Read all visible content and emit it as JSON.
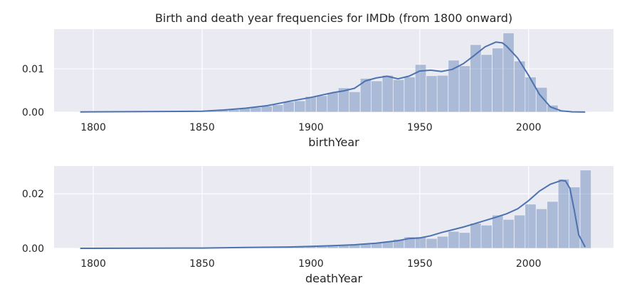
{
  "chart_data": [
    {
      "type": "histogram",
      "title": "Birth and death year frequencies for IMDb (from 1800 onward)",
      "xlabel": "birthYear",
      "ylabel": "",
      "xlim": [
        1782,
        2039
      ],
      "ylim": [
        0,
        0.0192
      ],
      "xticks": [
        "1800",
        "1850",
        "1900",
        "1950",
        "2000"
      ],
      "yticks": [
        "0.00",
        "0.01"
      ],
      "bin_width": 5.045,
      "bins": [
        {
          "x": 1794.0,
          "y": 6e-05
        },
        {
          "x": 1799.0,
          "y": 7e-05
        },
        {
          "x": 1804.0,
          "y": 7e-05
        },
        {
          "x": 1809.0,
          "y": 8e-05
        },
        {
          "x": 1814.1,
          "y": 9e-05
        },
        {
          "x": 1819.1,
          "y": 0.0001
        },
        {
          "x": 1824.2,
          "y": 0.00012
        },
        {
          "x": 1829.2,
          "y": 0.00014
        },
        {
          "x": 1834.3,
          "y": 0.00017
        },
        {
          "x": 1839.3,
          "y": 0.0002
        },
        {
          "x": 1844.4,
          "y": 0.00025
        },
        {
          "x": 1849.4,
          "y": 0.0003
        },
        {
          "x": 1854.5,
          "y": 0.0004
        },
        {
          "x": 1859.5,
          "y": 0.0005
        },
        {
          "x": 1864.6,
          "y": 0.0006
        },
        {
          "x": 1869.6,
          "y": 0.0009
        },
        {
          "x": 1874.7,
          "y": 0.0011
        },
        {
          "x": 1879.7,
          "y": 0.0014
        },
        {
          "x": 1884.8,
          "y": 0.0017
        },
        {
          "x": 1889.8,
          "y": 0.0024
        },
        {
          "x": 1894.9,
          "y": 0.0026
        },
        {
          "x": 1899.9,
          "y": 0.0036
        },
        {
          "x": 1905.0,
          "y": 0.0038
        },
        {
          "x": 1910.0,
          "y": 0.0045
        },
        {
          "x": 1915.1,
          "y": 0.0056
        },
        {
          "x": 1920.1,
          "y": 0.0047
        },
        {
          "x": 1925.2,
          "y": 0.0078
        },
        {
          "x": 1930.2,
          "y": 0.0072
        },
        {
          "x": 1935.3,
          "y": 0.0085
        },
        {
          "x": 1940.3,
          "y": 0.0075
        },
        {
          "x": 1945.4,
          "y": 0.0081
        },
        {
          "x": 1950.4,
          "y": 0.011
        },
        {
          "x": 1955.5,
          "y": 0.0084
        },
        {
          "x": 1960.5,
          "y": 0.0085
        },
        {
          "x": 1965.6,
          "y": 0.012
        },
        {
          "x": 1970.6,
          "y": 0.0107
        },
        {
          "x": 1975.7,
          "y": 0.0156
        },
        {
          "x": 1980.7,
          "y": 0.0133
        },
        {
          "x": 1985.8,
          "y": 0.0148
        },
        {
          "x": 1990.8,
          "y": 0.0183
        },
        {
          "x": 1995.9,
          "y": 0.0118
        },
        {
          "x": 2000.9,
          "y": 0.0081
        },
        {
          "x": 2006.0,
          "y": 0.0057
        },
        {
          "x": 2011.0,
          "y": 0.0016
        },
        {
          "x": 2016.1,
          "y": 0.0004
        },
        {
          "x": 2021.1,
          "y": 0.0001
        },
        {
          "x": 2026.2,
          "y": 3e-05
        }
      ],
      "kde": {
        "x": [
          1794,
          1850,
          1860,
          1870,
          1880,
          1890,
          1900,
          1910,
          1915,
          1920,
          1925,
          1930,
          1935,
          1940,
          1945,
          1950,
          1955,
          1960,
          1965,
          1970,
          1975,
          1980,
          1985,
          1988,
          1990,
          1995,
          2000,
          2005,
          2010,
          2015,
          2020,
          2026
        ],
        "y": [
          5e-05,
          0.0002,
          0.0005,
          0.0009,
          0.0015,
          0.0025,
          0.0034,
          0.0045,
          0.0049,
          0.0055,
          0.0072,
          0.0079,
          0.0083,
          0.0077,
          0.0083,
          0.0095,
          0.0097,
          0.0094,
          0.0099,
          0.0112,
          0.0131,
          0.0151,
          0.0162,
          0.016,
          0.0152,
          0.0125,
          0.0085,
          0.0041,
          0.0012,
          0.0003,
          6e-05,
          1e-05
        ]
      },
      "color": "#4c72b0",
      "bar_color": "#4c72b0",
      "bar_opacity": 0.4,
      "background": "#eaeaf2",
      "grid": true
    },
    {
      "type": "histogram",
      "title": "",
      "xlabel": "deathYear",
      "ylabel": "",
      "xlim": [
        1782,
        2039
      ],
      "ylim": [
        0,
        0.0302
      ],
      "xticks": [
        "1800",
        "1850",
        "1900",
        "1950",
        "2000"
      ],
      "yticks": [
        "0.00",
        "0.02"
      ],
      "bin_width": 5.045,
      "bins": [
        {
          "x": 1794.0,
          "y": 5e-05
        },
        {
          "x": 1799.0,
          "y": 5e-05
        },
        {
          "x": 1804.0,
          "y": 5e-05
        },
        {
          "x": 1809.0,
          "y": 5e-05
        },
        {
          "x": 1814.1,
          "y": 6e-05
        },
        {
          "x": 1819.1,
          "y": 6e-05
        },
        {
          "x": 1824.2,
          "y": 6e-05
        },
        {
          "x": 1829.2,
          "y": 7e-05
        },
        {
          "x": 1834.3,
          "y": 8e-05
        },
        {
          "x": 1839.3,
          "y": 9e-05
        },
        {
          "x": 1844.4,
          "y": 0.0001
        },
        {
          "x": 1849.4,
          "y": 0.00012
        },
        {
          "x": 1854.5,
          "y": 0.00014
        },
        {
          "x": 1859.5,
          "y": 0.00017
        },
        {
          "x": 1864.6,
          "y": 0.0002
        },
        {
          "x": 1869.6,
          "y": 0.00025
        },
        {
          "x": 1874.7,
          "y": 0.0003
        },
        {
          "x": 1879.7,
          "y": 0.00035
        },
        {
          "x": 1884.8,
          "y": 0.0004
        },
        {
          "x": 1889.8,
          "y": 0.0005
        },
        {
          "x": 1894.9,
          "y": 0.0006
        },
        {
          "x": 1899.9,
          "y": 0.0006
        },
        {
          "x": 1905.0,
          "y": 0.0007
        },
        {
          "x": 1910.0,
          "y": 0.0008
        },
        {
          "x": 1915.1,
          "y": 0.001
        },
        {
          "x": 1920.1,
          "y": 0.0014
        },
        {
          "x": 1925.2,
          "y": 0.0016
        },
        {
          "x": 1930.2,
          "y": 0.0021
        },
        {
          "x": 1935.3,
          "y": 0.0026
        },
        {
          "x": 1940.3,
          "y": 0.0033
        },
        {
          "x": 1945.4,
          "y": 0.0042
        },
        {
          "x": 1950.4,
          "y": 0.0042
        },
        {
          "x": 1955.5,
          "y": 0.0036
        },
        {
          "x": 1960.5,
          "y": 0.0044
        },
        {
          "x": 1965.6,
          "y": 0.0062
        },
        {
          "x": 1970.6,
          "y": 0.0058
        },
        {
          "x": 1975.7,
          "y": 0.0092
        },
        {
          "x": 1980.7,
          "y": 0.0085
        },
        {
          "x": 1985.8,
          "y": 0.0122
        },
        {
          "x": 1990.8,
          "y": 0.0106
        },
        {
          "x": 1995.9,
          "y": 0.0122
        },
        {
          "x": 2000.9,
          "y": 0.0162
        },
        {
          "x": 2006.0,
          "y": 0.0145
        },
        {
          "x": 2011.0,
          "y": 0.0172
        },
        {
          "x": 2016.1,
          "y": 0.0254
        },
        {
          "x": 2021.1,
          "y": 0.0225
        },
        {
          "x": 2026.2,
          "y": 0.0287
        }
      ],
      "kde": {
        "x": [
          1794,
          1850,
          1870,
          1890,
          1900,
          1910,
          1920,
          1930,
          1940,
          1945,
          1950,
          1955,
          1960,
          1965,
          1970,
          1975,
          1980,
          1985,
          1990,
          1995,
          2000,
          2005,
          2010,
          2015,
          2017,
          2019,
          2021,
          2023,
          2026
        ],
        "y": [
          0.0,
          0.0001,
          0.0003,
          0.0005,
          0.0007,
          0.001,
          0.0013,
          0.0019,
          0.0028,
          0.0036,
          0.0038,
          0.0046,
          0.0058,
          0.0068,
          0.0078,
          0.009,
          0.0102,
          0.0114,
          0.0127,
          0.0145,
          0.0175,
          0.021,
          0.0235,
          0.0249,
          0.0247,
          0.022,
          0.014,
          0.005,
          0.0005
        ]
      },
      "color": "#4c72b0",
      "bar_color": "#4c72b0",
      "bar_opacity": 0.4,
      "background": "#eaeaf2",
      "grid": true
    }
  ]
}
